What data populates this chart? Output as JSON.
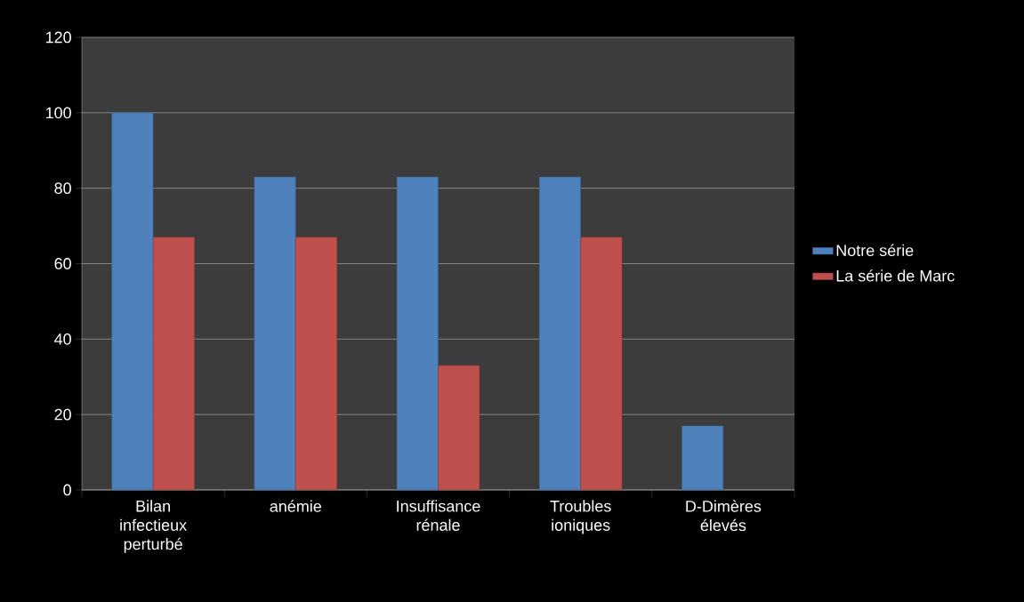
{
  "chart_data": {
    "type": "bar",
    "categories": [
      "Bilan infectieux perturbé",
      "anémie",
      "Insuffisance rénale",
      "Troubles ioniques",
      "D-Dimères élevés"
    ],
    "series": [
      {
        "name": "Notre série",
        "color": "#4f81bd",
        "values": [
          100,
          83,
          83,
          83,
          17
        ]
      },
      {
        "name": "La série de Marc",
        "color": "#c0504d",
        "values": [
          67,
          67,
          33,
          67,
          null
        ]
      }
    ],
    "ylim": [
      0,
      120
    ],
    "yticks": [
      0,
      20,
      40,
      60,
      80,
      100,
      120
    ],
    "grid": "y",
    "legend": "right"
  }
}
